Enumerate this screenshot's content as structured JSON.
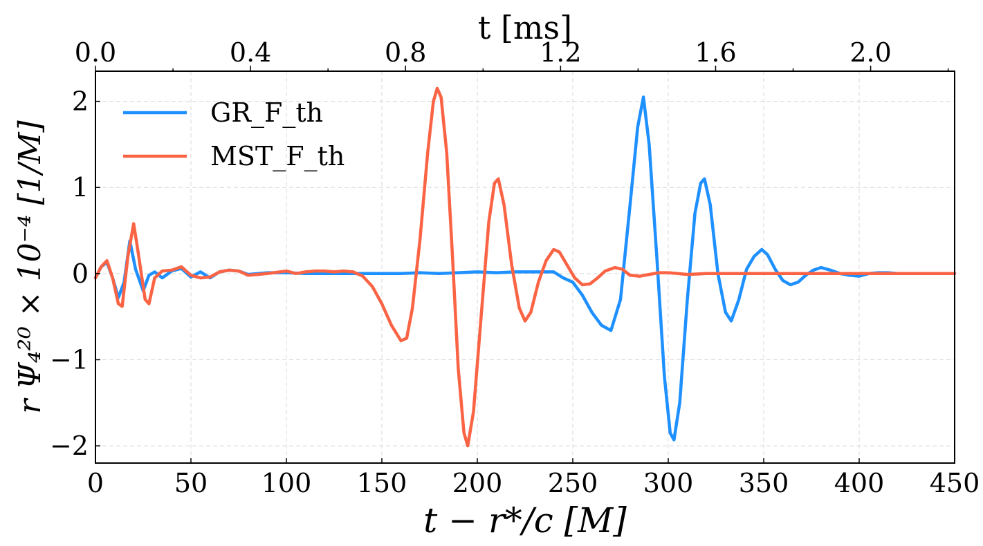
{
  "chart_data": {
    "type": "line",
    "xlabel": "t − r*/c [M]",
    "ylabel": "r Ψ₄²⁰ × 10⁻⁴ [1/M]",
    "top_xlabel": "t [ms]",
    "xlim": [
      0,
      450
    ],
    "ylim": [
      -2.2,
      2.35
    ],
    "top_xlim": [
      0.0,
      2.2167
    ],
    "x_ticks": [
      0,
      50,
      100,
      150,
      200,
      250,
      300,
      350,
      400,
      450
    ],
    "x_tick_labels": [
      "0",
      "50",
      "100",
      "150",
      "200",
      "250",
      "300",
      "350",
      "400",
      "450"
    ],
    "y_ticks": [
      -2,
      -1,
      0,
      1,
      2
    ],
    "y_tick_labels": [
      "−2",
      "−1",
      "0",
      "1",
      "2"
    ],
    "top_x_ticks": [
      0.0,
      0.4,
      0.8,
      1.2,
      1.6,
      2.0
    ],
    "top_x_tick_labels": [
      "0.0",
      "0.4",
      "0.8",
      "1.2",
      "1.6",
      "2.0"
    ],
    "top_minor_ticks": [
      0.2,
      0.6,
      1.0,
      1.4,
      1.8,
      2.2
    ],
    "grid": true,
    "legend_position": "top-left",
    "series": [
      {
        "name": "GR_F_th",
        "color": "#1e90ff",
        "points": [
          [
            0,
            -0.05
          ],
          [
            3,
            0.08
          ],
          [
            6,
            0.13
          ],
          [
            9,
            -0.05
          ],
          [
            12,
            -0.28
          ],
          [
            15,
            -0.1
          ],
          [
            18,
            0.38
          ],
          [
            21,
            0.05
          ],
          [
            25,
            -0.2
          ],
          [
            28,
            -0.02
          ],
          [
            31,
            0.02
          ],
          [
            35,
            -0.05
          ],
          [
            40,
            0.03
          ],
          [
            45,
            0.06
          ],
          [
            50,
            -0.04
          ],
          [
            55,
            0.02
          ],
          [
            60,
            -0.05
          ],
          [
            65,
            0.02
          ],
          [
            70,
            0.04
          ],
          [
            75,
            0.03
          ],
          [
            80,
            -0.01
          ],
          [
            90,
            0.01
          ],
          [
            100,
            0.01
          ],
          [
            110,
            0.0
          ],
          [
            120,
            0.0
          ],
          [
            130,
            0.0
          ],
          [
            140,
            0.0
          ],
          [
            150,
            0.0
          ],
          [
            160,
            0.0
          ],
          [
            170,
            0.01
          ],
          [
            180,
            0.0
          ],
          [
            190,
            0.01
          ],
          [
            200,
            0.02
          ],
          [
            210,
            0.01
          ],
          [
            220,
            0.02
          ],
          [
            230,
            0.02
          ],
          [
            240,
            0.02
          ],
          [
            245,
            -0.05
          ],
          [
            250,
            -0.1
          ],
          [
            255,
            -0.25
          ],
          [
            260,
            -0.45
          ],
          [
            265,
            -0.6
          ],
          [
            270,
            -0.66
          ],
          [
            275,
            -0.3
          ],
          [
            280,
            0.8
          ],
          [
            284,
            1.7
          ],
          [
            287,
            2.05
          ],
          [
            290,
            1.5
          ],
          [
            294,
            0.2
          ],
          [
            298,
            -1.2
          ],
          [
            301,
            -1.85
          ],
          [
            303,
            -1.93
          ],
          [
            306,
            -1.5
          ],
          [
            310,
            -0.3
          ],
          [
            314,
            0.7
          ],
          [
            317,
            1.05
          ],
          [
            319,
            1.1
          ],
          [
            322,
            0.8
          ],
          [
            326,
            0.0
          ],
          [
            330,
            -0.45
          ],
          [
            333,
            -0.55
          ],
          [
            337,
            -0.3
          ],
          [
            341,
            0.05
          ],
          [
            345,
            0.2
          ],
          [
            349,
            0.28
          ],
          [
            352,
            0.22
          ],
          [
            356,
            0.05
          ],
          [
            360,
            -0.08
          ],
          [
            364,
            -0.13
          ],
          [
            368,
            -0.1
          ],
          [
            372,
            -0.02
          ],
          [
            376,
            0.04
          ],
          [
            380,
            0.07
          ],
          [
            385,
            0.04
          ],
          [
            390,
            0.0
          ],
          [
            395,
            -0.02
          ],
          [
            400,
            -0.03
          ],
          [
            405,
            0.0
          ],
          [
            410,
            0.01
          ],
          [
            415,
            0.01
          ],
          [
            420,
            0.0
          ],
          [
            430,
            0.0
          ],
          [
            440,
            0.0
          ],
          [
            450,
            0.0
          ]
        ]
      },
      {
        "name": "MST_F_th",
        "color": "#fa6445",
        "points": [
          [
            0,
            -0.05
          ],
          [
            3,
            0.08
          ],
          [
            6,
            0.15
          ],
          [
            9,
            -0.05
          ],
          [
            12,
            -0.35
          ],
          [
            14,
            -0.38
          ],
          [
            17,
            0.2
          ],
          [
            20,
            0.58
          ],
          [
            22,
            0.3
          ],
          [
            26,
            -0.3
          ],
          [
            28,
            -0.35
          ],
          [
            31,
            -0.05
          ],
          [
            35,
            0.03
          ],
          [
            40,
            0.04
          ],
          [
            45,
            0.08
          ],
          [
            50,
            -0.02
          ],
          [
            55,
            -0.05
          ],
          [
            60,
            -0.04
          ],
          [
            65,
            0.02
          ],
          [
            70,
            0.04
          ],
          [
            75,
            0.03
          ],
          [
            80,
            -0.02
          ],
          [
            90,
            0.0
          ],
          [
            100,
            0.03
          ],
          [
            105,
            0.0
          ],
          [
            110,
            0.02
          ],
          [
            115,
            0.03
          ],
          [
            120,
            0.03
          ],
          [
            125,
            0.02
          ],
          [
            130,
            0.03
          ],
          [
            135,
            0.02
          ],
          [
            140,
            -0.03
          ],
          [
            145,
            -0.15
          ],
          [
            150,
            -0.35
          ],
          [
            155,
            -0.6
          ],
          [
            160,
            -0.78
          ],
          [
            163,
            -0.75
          ],
          [
            166,
            -0.4
          ],
          [
            170,
            0.4
          ],
          [
            174,
            1.4
          ],
          [
            177,
            2.0
          ],
          [
            179,
            2.15
          ],
          [
            181,
            2.05
          ],
          [
            184,
            1.4
          ],
          [
            187,
            0.2
          ],
          [
            190,
            -1.1
          ],
          [
            193,
            -1.85
          ],
          [
            195,
            -2.0
          ],
          [
            198,
            -1.6
          ],
          [
            202,
            -0.5
          ],
          [
            206,
            0.6
          ],
          [
            209,
            1.05
          ],
          [
            211,
            1.1
          ],
          [
            214,
            0.8
          ],
          [
            218,
            0.1
          ],
          [
            222,
            -0.4
          ],
          [
            225,
            -0.55
          ],
          [
            228,
            -0.45
          ],
          [
            232,
            -0.1
          ],
          [
            236,
            0.15
          ],
          [
            240,
            0.28
          ],
          [
            243,
            0.25
          ],
          [
            247,
            0.1
          ],
          [
            251,
            -0.05
          ],
          [
            255,
            -0.13
          ],
          [
            259,
            -0.12
          ],
          [
            263,
            -0.05
          ],
          [
            267,
            0.03
          ],
          [
            272,
            0.07
          ],
          [
            276,
            0.05
          ],
          [
            280,
            -0.02
          ],
          [
            285,
            -0.03
          ],
          [
            290,
            -0.01
          ],
          [
            295,
            0.01
          ],
          [
            300,
            0.01
          ],
          [
            305,
            0.0
          ],
          [
            310,
            -0.01
          ],
          [
            320,
            0.0
          ],
          [
            330,
            0.0
          ],
          [
            340,
            0.0
          ],
          [
            360,
            0.0
          ],
          [
            380,
            0.0
          ],
          [
            400,
            0.0
          ],
          [
            420,
            0.0
          ],
          [
            450,
            0.0
          ]
        ]
      }
    ]
  }
}
